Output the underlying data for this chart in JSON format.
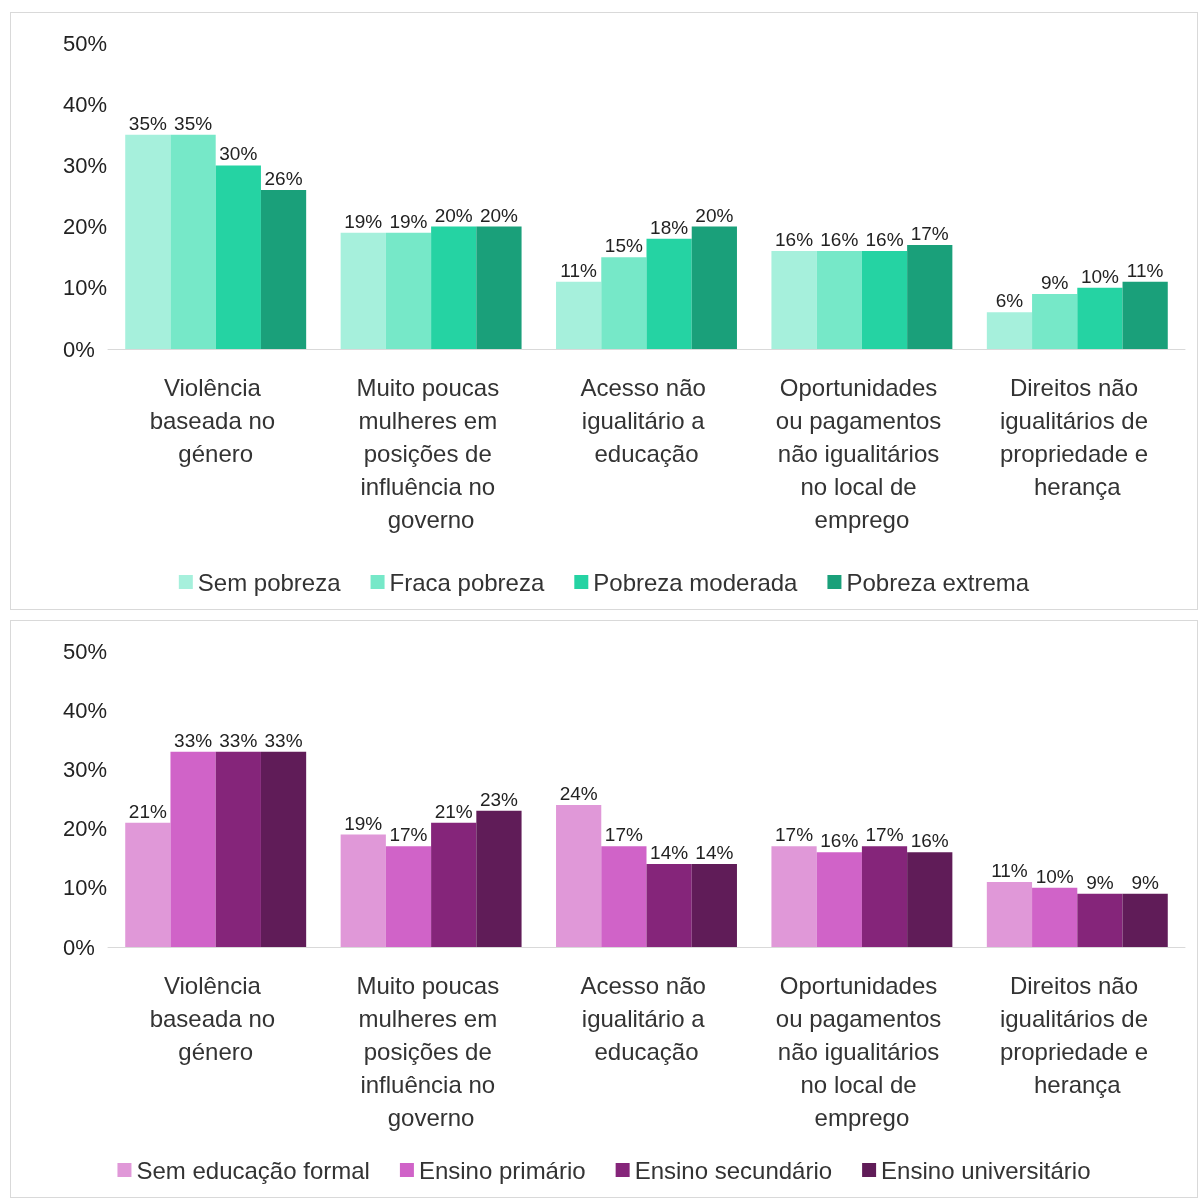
{
  "chart_data": [
    {
      "type": "bar",
      "categories": [
        "Violência baseada no género",
        "Muito poucas mulheres em posições de influência no governo",
        "Acesso não igualitário a educação",
        "Oportunidades ou pagamentos não igualitários no local de emprego",
        "Direitos não igualitários de propriedade e herança"
      ],
      "series": [
        {
          "name": "Sem pobreza",
          "color": "#a6f0dc",
          "values": [
            35,
            19,
            11,
            16,
            6
          ],
          "value_labels": [
            "35%",
            "19%",
            "11%",
            "16%",
            "6%"
          ]
        },
        {
          "name": "Fraca pobreza",
          "color": "#76e8c8",
          "values": [
            35,
            19,
            15,
            16,
            9
          ],
          "value_labels": [
            "35%",
            "19%",
            "15%",
            "16%",
            "9%"
          ]
        },
        {
          "name": "Pobreza moderada",
          "color": "#25d3a3",
          "values": [
            30,
            20,
            18,
            16,
            10
          ],
          "value_labels": [
            "30%",
            "20%",
            "18%",
            "16%",
            "10%"
          ]
        },
        {
          "name": "Pobreza extrema",
          "color": "#1aa07a",
          "values": [
            26,
            20,
            20,
            17,
            11
          ],
          "value_labels": [
            "26%",
            "20%",
            "20%",
            "17%",
            "11%"
          ]
        }
      ],
      "ylim": [
        0,
        50
      ],
      "yticks": [
        {
          "value": 0,
          "label": "0%"
        },
        {
          "value": 10,
          "label": "10%"
        },
        {
          "value": 20,
          "label": "20%"
        },
        {
          "value": 30,
          "label": "30%"
        },
        {
          "value": 40,
          "label": "40%"
        },
        {
          "value": 50,
          "label": "50%"
        }
      ],
      "grid": false,
      "legend": "bottom"
    },
    {
      "type": "bar",
      "categories": [
        "Violência baseada no género",
        "Muito poucas mulheres em posições de influência no governo",
        "Acesso não igualitário a educação",
        "Oportunidades ou pagamentos não igualitários no local de emprego",
        "Direitos não igualitários de propriedade e herança"
      ],
      "series": [
        {
          "name": "Sem educação formal",
          "color": "#e098d8",
          "values": [
            21,
            19,
            24,
            17,
            11
          ],
          "value_labels": [
            "21%",
            "19%",
            "24%",
            "17%",
            "11%"
          ]
        },
        {
          "name": "Ensino primário",
          "color": "#d063c8",
          "values": [
            33,
            17,
            17,
            16,
            10
          ],
          "value_labels": [
            "33%",
            "17%",
            "17%",
            "16%",
            "10%"
          ]
        },
        {
          "name": "Ensino secundário",
          "color": "#85257a",
          "values": [
            33,
            21,
            14,
            17,
            9
          ],
          "value_labels": [
            "33%",
            "21%",
            "14%",
            "17%",
            "9%"
          ]
        },
        {
          "name": "Ensino universitário",
          "color": "#601c58",
          "values": [
            33,
            23,
            14,
            16,
            9
          ],
          "value_labels": [
            "33%",
            "23%",
            "14%",
            "16%",
            "9%"
          ]
        }
      ],
      "ylim": [
        0,
        50
      ],
      "yticks": [
        {
          "value": 0,
          "label": "0%"
        },
        {
          "value": 10,
          "label": "10%"
        },
        {
          "value": 20,
          "label": "20%"
        },
        {
          "value": 30,
          "label": "30%"
        },
        {
          "value": 40,
          "label": "40%"
        },
        {
          "value": 50,
          "label": "50%"
        }
      ],
      "grid": false,
      "legend": "bottom"
    }
  ]
}
